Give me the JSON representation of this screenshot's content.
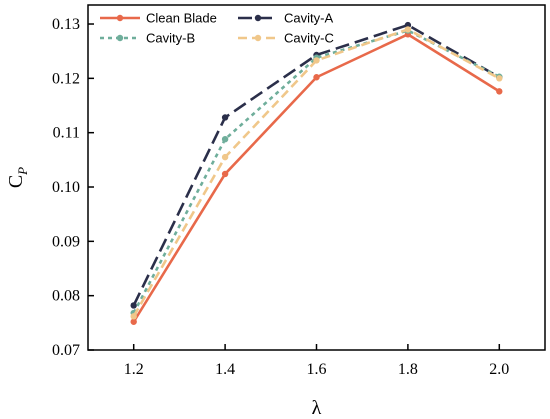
{
  "chart_data": {
    "type": "line",
    "x": [
      1.2,
      1.4,
      1.6,
      1.8,
      2.0
    ],
    "x_tick_labels": [
      "1.2",
      "1.4",
      "1.6",
      "1.8",
      "2.0"
    ],
    "y_tick_labels": [
      "0.07",
      "0.08",
      "0.09",
      "0.10",
      "0.11",
      "0.12",
      "0.13"
    ],
    "xlim": [
      1.1,
      2.1
    ],
    "ylim": [
      0.07,
      0.1335
    ],
    "xlabel": "λ",
    "ylabel_main": "C",
    "ylabel_sub": "P",
    "grid": false,
    "legend_position": "top-left",
    "series": [
      {
        "name": "Clean Blade",
        "color": "#e8694a",
        "dash": "solid",
        "values": [
          0.0752,
          0.1024,
          0.1202,
          0.1281,
          0.1176
        ]
      },
      {
        "name": "Cavity-A",
        "color": "#2b2f4a",
        "dash": "long-dash",
        "values": [
          0.0782,
          0.1128,
          0.1243,
          0.1298,
          0.1202
        ]
      },
      {
        "name": "Cavity-B",
        "color": "#6fae9b",
        "dash": "dotted",
        "values": [
          0.0768,
          0.1088,
          0.1238,
          0.1288,
          0.1203
        ]
      },
      {
        "name": "Cavity-C",
        "color": "#f0c78a",
        "dash": "dashed",
        "values": [
          0.0762,
          0.1055,
          0.1233,
          0.129,
          0.12
        ]
      }
    ]
  }
}
